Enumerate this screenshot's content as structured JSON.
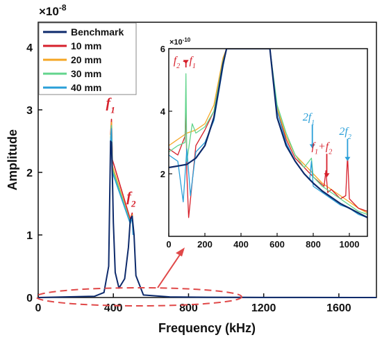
{
  "chart_data": [
    {
      "type": "line",
      "title": "",
      "xlabel": "Frequency (kHz)",
      "ylabel": "Amplitude",
      "y_multiplier": "×10",
      "y_exponent": "-8",
      "xlim": [
        0,
        1800
      ],
      "ylim": [
        0,
        4.4
      ],
      "xticks": [
        "0",
        "400",
        "800",
        "1200",
        "1600"
      ],
      "yticks": [
        "0",
        "1",
        "2",
        "3",
        "4"
      ],
      "legend_position": "top-left",
      "series": [
        {
          "name": "Benchmark",
          "color": "#0d2a6b",
          "x": [
            0,
            300,
            350,
            375,
            385,
            390,
            395,
            400,
            410,
            430,
            460,
            480,
            490,
            500,
            510,
            520,
            560,
            700,
            900,
            1100,
            1400,
            1800
          ],
          "y": [
            0.0,
            0.02,
            0.08,
            0.5,
            2.5,
            2.48,
            1.9,
            1.2,
            0.4,
            0.15,
            0.3,
            0.8,
            1.25,
            1.3,
            1.0,
            0.35,
            0.04,
            0.01,
            0.005,
            0.002,
            0.001,
            0.0
          ]
        },
        {
          "name": "10 mm",
          "color": "#d6202b",
          "x": [
            385,
            390,
            395,
            490,
            500,
            505
          ],
          "y": [
            2.6,
            2.85,
            2.2,
            1.25,
            1.35,
            1.1
          ]
        },
        {
          "name": "20 mm",
          "color": "#f5a623",
          "x": [
            385,
            390,
            395,
            490,
            500,
            505
          ],
          "y": [
            2.55,
            2.8,
            2.1,
            1.2,
            1.32,
            1.05
          ]
        },
        {
          "name": "30 mm",
          "color": "#62d48c",
          "x": [
            385,
            390,
            395,
            490,
            500,
            505
          ],
          "y": [
            2.5,
            2.75,
            2.05,
            1.2,
            1.3,
            1.05
          ]
        },
        {
          "name": "40 mm",
          "color": "#2a9fd8",
          "x": [
            385,
            390,
            395,
            490,
            500,
            505
          ],
          "y": [
            2.5,
            2.7,
            2.0,
            1.18,
            1.28,
            1.0
          ]
        }
      ],
      "annotations": [
        {
          "text_base": "f",
          "text_sub": "1",
          "x": 390,
          "y": 2.95,
          "color": "#d6202b"
        },
        {
          "text_base": "f",
          "text_sub": "2",
          "x": 500,
          "y": 1.45,
          "color": "#d6202b"
        }
      ]
    },
    {
      "type": "line",
      "title": "",
      "xlabel": "",
      "ylabel": "",
      "y_multiplier": "×10",
      "y_exponent": "-10",
      "xlim": [
        0,
        1100
      ],
      "ylim": [
        0,
        6
      ],
      "xticks": [
        "0",
        "200",
        "400",
        "600",
        "800",
        "1000"
      ],
      "yticks": [
        "2",
        "4",
        "6"
      ],
      "series": [
        {
          "name": "Benchmark",
          "color": "#0d2a6b",
          "x": [
            0,
            50,
            100,
            150,
            200,
            250,
            280,
            300,
            320,
            560,
            580,
            600,
            650,
            700,
            750,
            800,
            850,
            900,
            950,
            1000,
            1050,
            1100
          ],
          "y": [
            2.2,
            2.25,
            2.3,
            2.5,
            2.9,
            3.8,
            4.8,
            5.5,
            6.0,
            6.0,
            4.9,
            3.8,
            2.9,
            2.4,
            2.0,
            1.7,
            1.45,
            1.25,
            1.05,
            0.9,
            0.75,
            0.6
          ]
        },
        {
          "name": "10 mm",
          "color": "#d6202b",
          "x": [
            0,
            50,
            90,
            95,
            100,
            110,
            150,
            200,
            250,
            300,
            320,
            560,
            600,
            650,
            700,
            750,
            800,
            860,
            870,
            880,
            900,
            950,
            980,
            990,
            1000,
            1050,
            1100
          ],
          "y": [
            2.8,
            2.6,
            3.2,
            4.2,
            2.0,
            0.6,
            2.9,
            3.4,
            4.0,
            5.6,
            6.0,
            6.0,
            4.0,
            3.1,
            2.5,
            2.2,
            1.9,
            1.6,
            2.1,
            1.4,
            1.5,
            1.2,
            1.3,
            2.6,
            1.2,
            0.9,
            0.8
          ]
        },
        {
          "name": "20 mm",
          "color": "#f5a623",
          "x": [
            0,
            50,
            100,
            150,
            200,
            250,
            300,
            320,
            560,
            600,
            650,
            700,
            750,
            800,
            850,
            900,
            950,
            1000,
            1050,
            1100
          ],
          "y": [
            2.9,
            3.1,
            3.3,
            3.4,
            3.6,
            4.2,
            5.7,
            6.0,
            6.0,
            4.1,
            3.2,
            2.6,
            2.3,
            2.0,
            1.7,
            1.5,
            1.3,
            1.1,
            0.9,
            0.75
          ]
        },
        {
          "name": "30 mm",
          "color": "#62d48c",
          "x": [
            0,
            50,
            90,
            95,
            100,
            130,
            150,
            200,
            250,
            300,
            320,
            560,
            600,
            650,
            700,
            750,
            790,
            800,
            850,
            900,
            950,
            1000,
            1050,
            1100
          ],
          "y": [
            2.7,
            2.9,
            3.0,
            5.2,
            2.4,
            3.6,
            3.3,
            3.5,
            4.0,
            5.6,
            6.0,
            6.0,
            4.2,
            3.3,
            2.6,
            2.2,
            2.5,
            1.9,
            1.6,
            1.4,
            1.2,
            1.0,
            0.8,
            0.7
          ]
        },
        {
          "name": "40 mm",
          "color": "#2a9fd8",
          "x": [
            0,
            50,
            80,
            100,
            120,
            150,
            200,
            250,
            300,
            320,
            560,
            600,
            650,
            700,
            750,
            780,
            790,
            800,
            850,
            900,
            950,
            1000,
            1050,
            1100
          ],
          "y": [
            2.6,
            2.4,
            1.1,
            2.8,
            1.3,
            2.7,
            3.0,
            3.7,
            5.4,
            6.0,
            6.0,
            4.0,
            3.0,
            2.4,
            2.0,
            1.8,
            2.4,
            1.6,
            1.4,
            1.2,
            1.0,
            0.9,
            0.7,
            0.6
          ]
        }
      ],
      "annotations": [
        {
          "text_html": "f<tspan baseline-shift=\"sub\" font-size=\"10\">2</tspan> - f<tspan baseline-shift=\"sub\" font-size=\"10\">1</tspan>",
          "text_plain": "f2 - f1",
          "x": 95,
          "y": 5.55,
          "color": "#d6202b"
        },
        {
          "text_plain": "2f1",
          "x": 795,
          "y": 3.3,
          "color": "#2a9fd8"
        },
        {
          "text_plain": "f1+f2",
          "x": 875,
          "y": 2.55,
          "color": "#d6202b"
        },
        {
          "text_plain": "2f2",
          "x": 990,
          "y": 2.85,
          "color": "#2a9fd8"
        }
      ]
    }
  ]
}
